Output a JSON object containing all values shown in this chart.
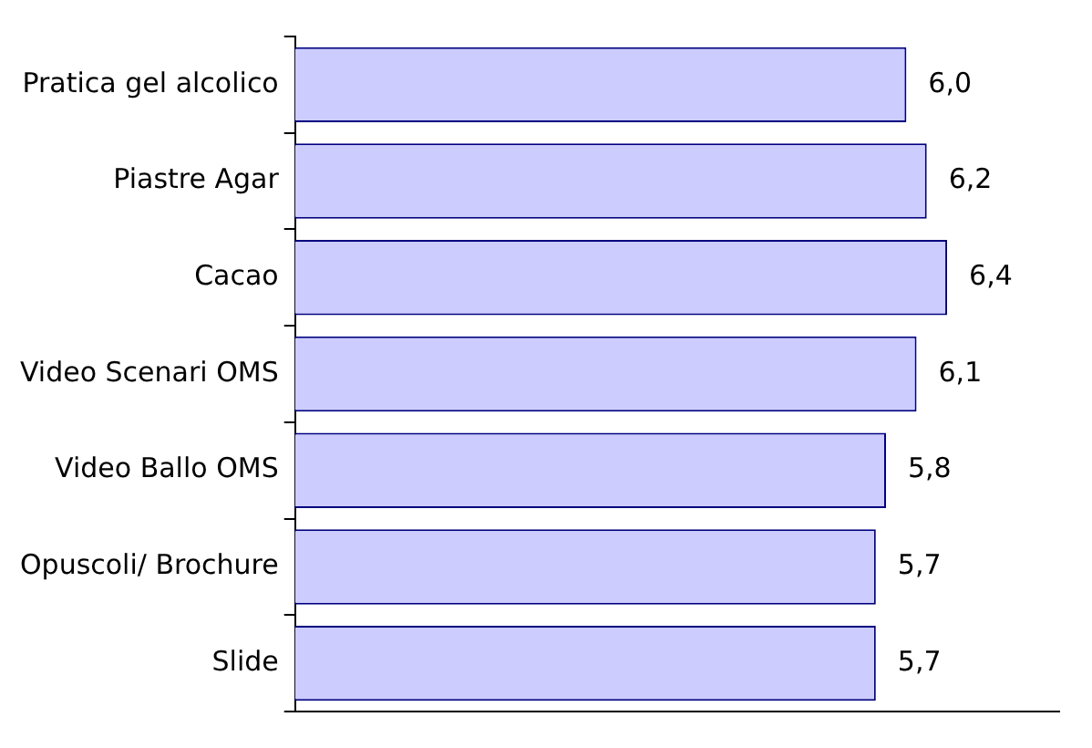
{
  "chart_data": {
    "type": "bar",
    "orientation": "horizontal",
    "categories": [
      "Pratica gel alcolico",
      "Piastre Agar",
      "Cacao",
      "Video Scenari OMS",
      "Video Ballo OMS",
      "Opuscoli/ Brochure",
      "Slide"
    ],
    "values": [
      6.0,
      6.2,
      6.4,
      6.1,
      5.8,
      5.7,
      5.7
    ],
    "value_labels": [
      "6,0",
      "6,2",
      "6,4",
      "6,1",
      "5,8",
      "5,7",
      "5,7"
    ],
    "color": "#ccccff",
    "xlim": [
      0,
      7.5
    ],
    "tick_labels": "y",
    "legend": false,
    "grid": false
  }
}
